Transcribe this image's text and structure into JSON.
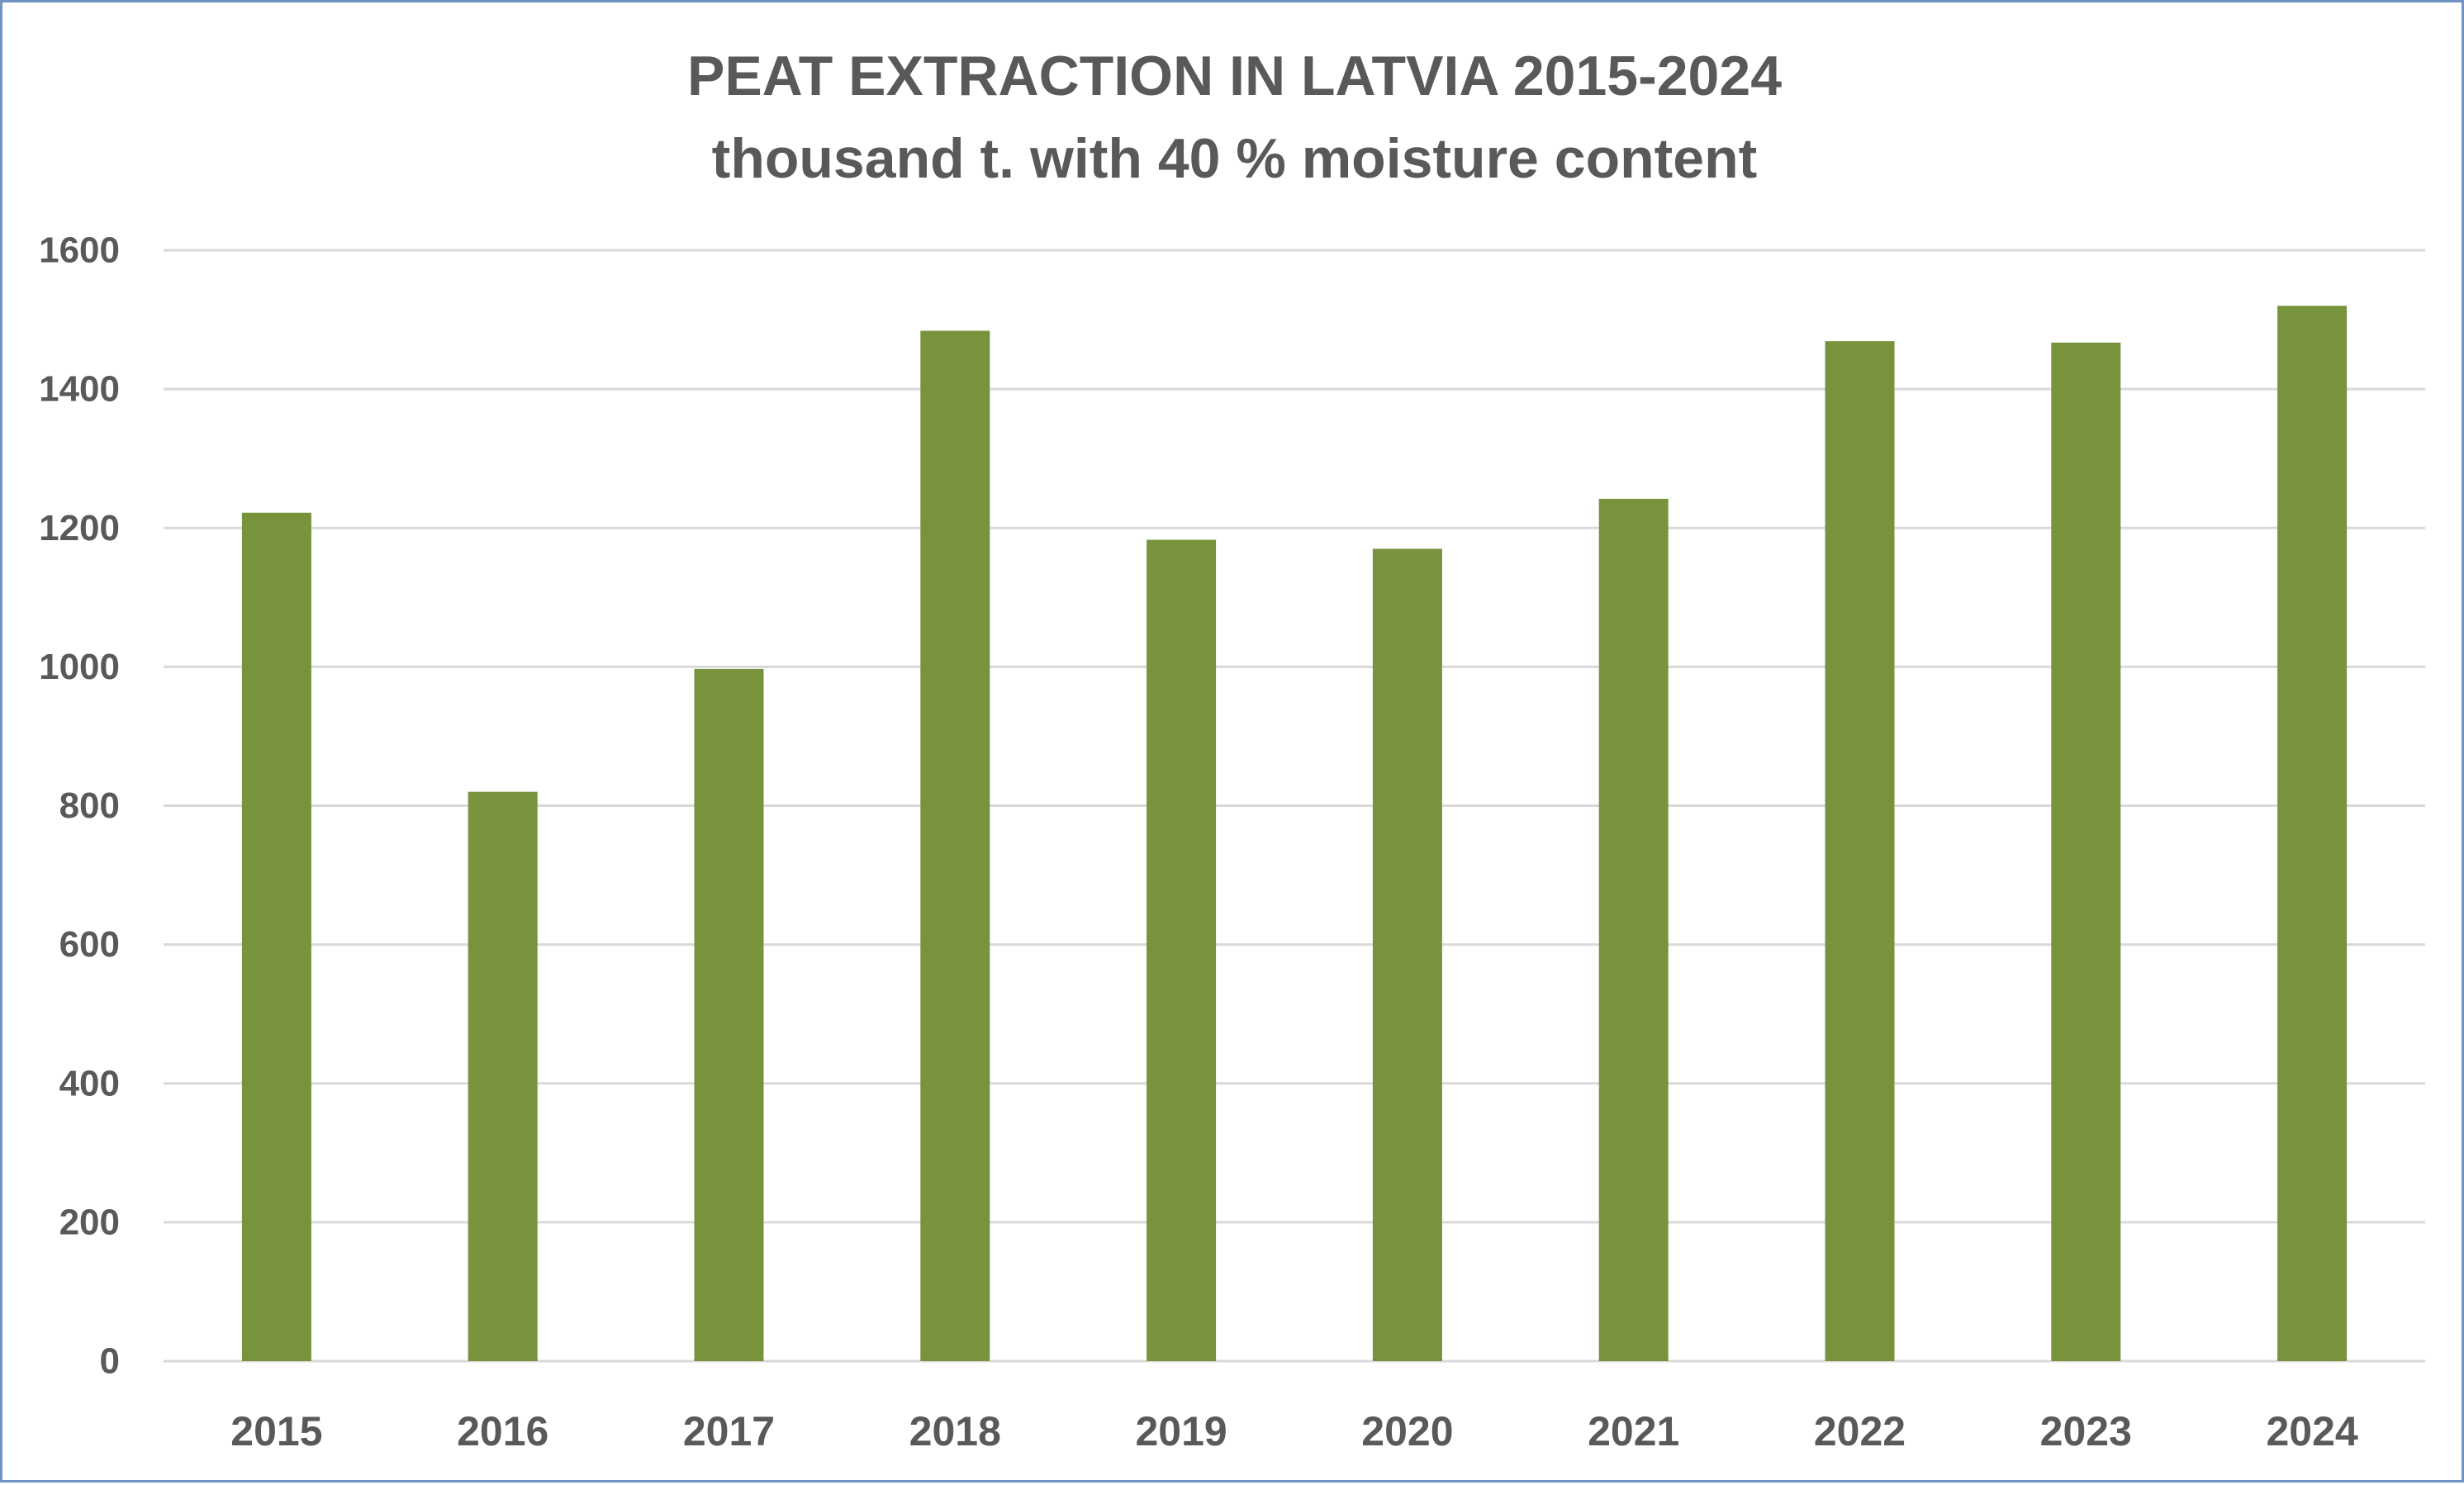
{
  "chart_data": {
    "type": "bar",
    "title": "PEAT EXTRACTION IN LATVIA 2015-2024",
    "subtitle": "thousand t. with 40 % moisture content",
    "xlabel": "",
    "ylabel": "",
    "categories": [
      "2015",
      "2016",
      "2017",
      "2018",
      "2019",
      "2020",
      "2021",
      "2022",
      "2023",
      "2024"
    ],
    "values": [
      1222,
      820,
      997,
      1484,
      1183,
      1170,
      1242,
      1469,
      1467,
      1520
    ],
    "ylim": [
      0,
      1600
    ],
    "yticks": [
      0,
      200,
      400,
      600,
      800,
      1000,
      1200,
      1400,
      1600
    ],
    "grid": true,
    "legend": "none",
    "bar_color": "#77933c",
    "grid_color": "#d9d9d9",
    "text_color": "#595959",
    "border_color": "#6f93c4"
  }
}
